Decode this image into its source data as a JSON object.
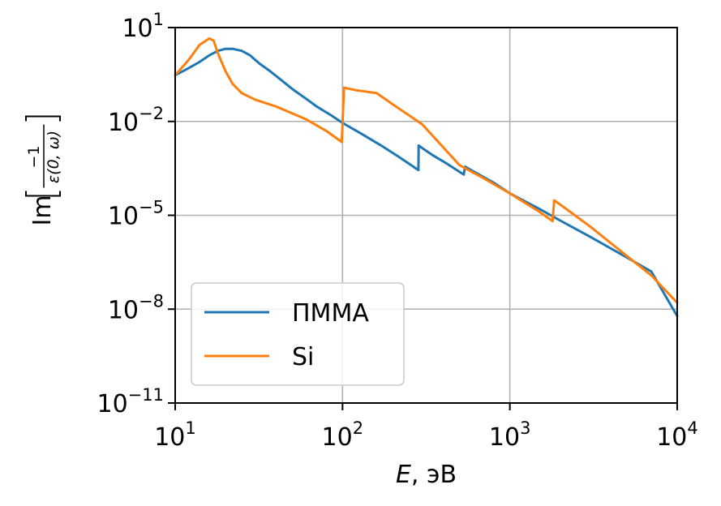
{
  "chart_data": {
    "type": "line",
    "title": "",
    "xlabel_italic": "E",
    "xlabel_rest": ", эВ",
    "ylabel_prefix": "Im",
    "ylabel_numerator": "−1",
    "ylabel_denominator": "ε(0, ω)",
    "x_scale": "log",
    "y_scale": "log",
    "xlim": [
      10,
      10000
    ],
    "ylim": [
      1e-11,
      10
    ],
    "grid": true,
    "legend_position": "lower-left",
    "x_ticks": [
      {
        "base": "10",
        "exp": "1"
      },
      {
        "base": "10",
        "exp": "2"
      },
      {
        "base": "10",
        "exp": "3"
      },
      {
        "base": "10",
        "exp": "4"
      }
    ],
    "y_ticks": [
      {
        "base": "10",
        "exp": "1",
        "value": 10
      },
      {
        "base": "10",
        "exp": "−2",
        "value": 0.01
      },
      {
        "base": "10",
        "exp": "−5",
        "value": 1e-05
      },
      {
        "base": "10",
        "exp": "−8",
        "value": 1e-08
      },
      {
        "base": "10",
        "exp": "−11",
        "value": 1e-11
      }
    ],
    "series": [
      {
        "name": "ПММА",
        "color": "#1f77b4",
        "points": [
          [
            10,
            0.3
          ],
          [
            12,
            0.5
          ],
          [
            14,
            0.8
          ],
          [
            16,
            1.3
          ],
          [
            18,
            1.8
          ],
          [
            20,
            2.1
          ],
          [
            22,
            2.1
          ],
          [
            25,
            1.8
          ],
          [
            28,
            1.3
          ],
          [
            32,
            0.7
          ],
          [
            37,
            0.4
          ],
          [
            43,
            0.21
          ],
          [
            50,
            0.11
          ],
          [
            60,
            0.055
          ],
          [
            70,
            0.03
          ],
          [
            85,
            0.016
          ],
          [
            100,
            0.009
          ],
          [
            130,
            0.004
          ],
          [
            170,
            0.0017
          ],
          [
            220,
            0.0007
          ],
          [
            284,
            0.00028
          ],
          [
            285,
            0.0017
          ],
          [
            300,
            0.0014
          ],
          [
            350,
            0.0008
          ],
          [
            420,
            0.00045
          ],
          [
            530,
            0.0002
          ],
          [
            540,
            0.00036
          ],
          [
            600,
            0.00026
          ],
          [
            800,
            0.00011
          ],
          [
            1000,
            5e-05
          ],
          [
            1500,
            1.6e-05
          ],
          [
            2000,
            6.8e-06
          ],
          [
            3000,
            2.1e-06
          ],
          [
            5000,
            4.5e-07
          ],
          [
            7000,
            1.6e-07
          ],
          [
            10000,
            6e-09
          ]
        ]
      },
      {
        "name": "Si",
        "color": "#ff7f0e",
        "points": [
          [
            10,
            0.3
          ],
          [
            12,
            0.9
          ],
          [
            14,
            2.8
          ],
          [
            16,
            4.5
          ],
          [
            17,
            3.8
          ],
          [
            18,
            1.5
          ],
          [
            20,
            0.4
          ],
          [
            22,
            0.16
          ],
          [
            25,
            0.08
          ],
          [
            30,
            0.05
          ],
          [
            40,
            0.03
          ],
          [
            60,
            0.012
          ],
          [
            80,
            0.005
          ],
          [
            99,
            0.0022
          ],
          [
            100,
            0.008
          ],
          [
            102,
            0.12
          ],
          [
            120,
            0.1
          ],
          [
            160,
            0.08
          ],
          [
            200,
            0.035
          ],
          [
            300,
            0.008
          ],
          [
            500,
            0.0004
          ],
          [
            700,
            0.00015
          ],
          [
            1000,
            5e-05
          ],
          [
            1500,
            1.3e-05
          ],
          [
            1800,
            6.5e-06
          ],
          [
            1840,
            3e-05
          ],
          [
            2000,
            2.2e-05
          ],
          [
            3000,
            4.5e-06
          ],
          [
            5000,
            5e-07
          ],
          [
            7000,
            1.2e-07
          ],
          [
            10000,
            1.6e-08
          ]
        ]
      }
    ]
  }
}
